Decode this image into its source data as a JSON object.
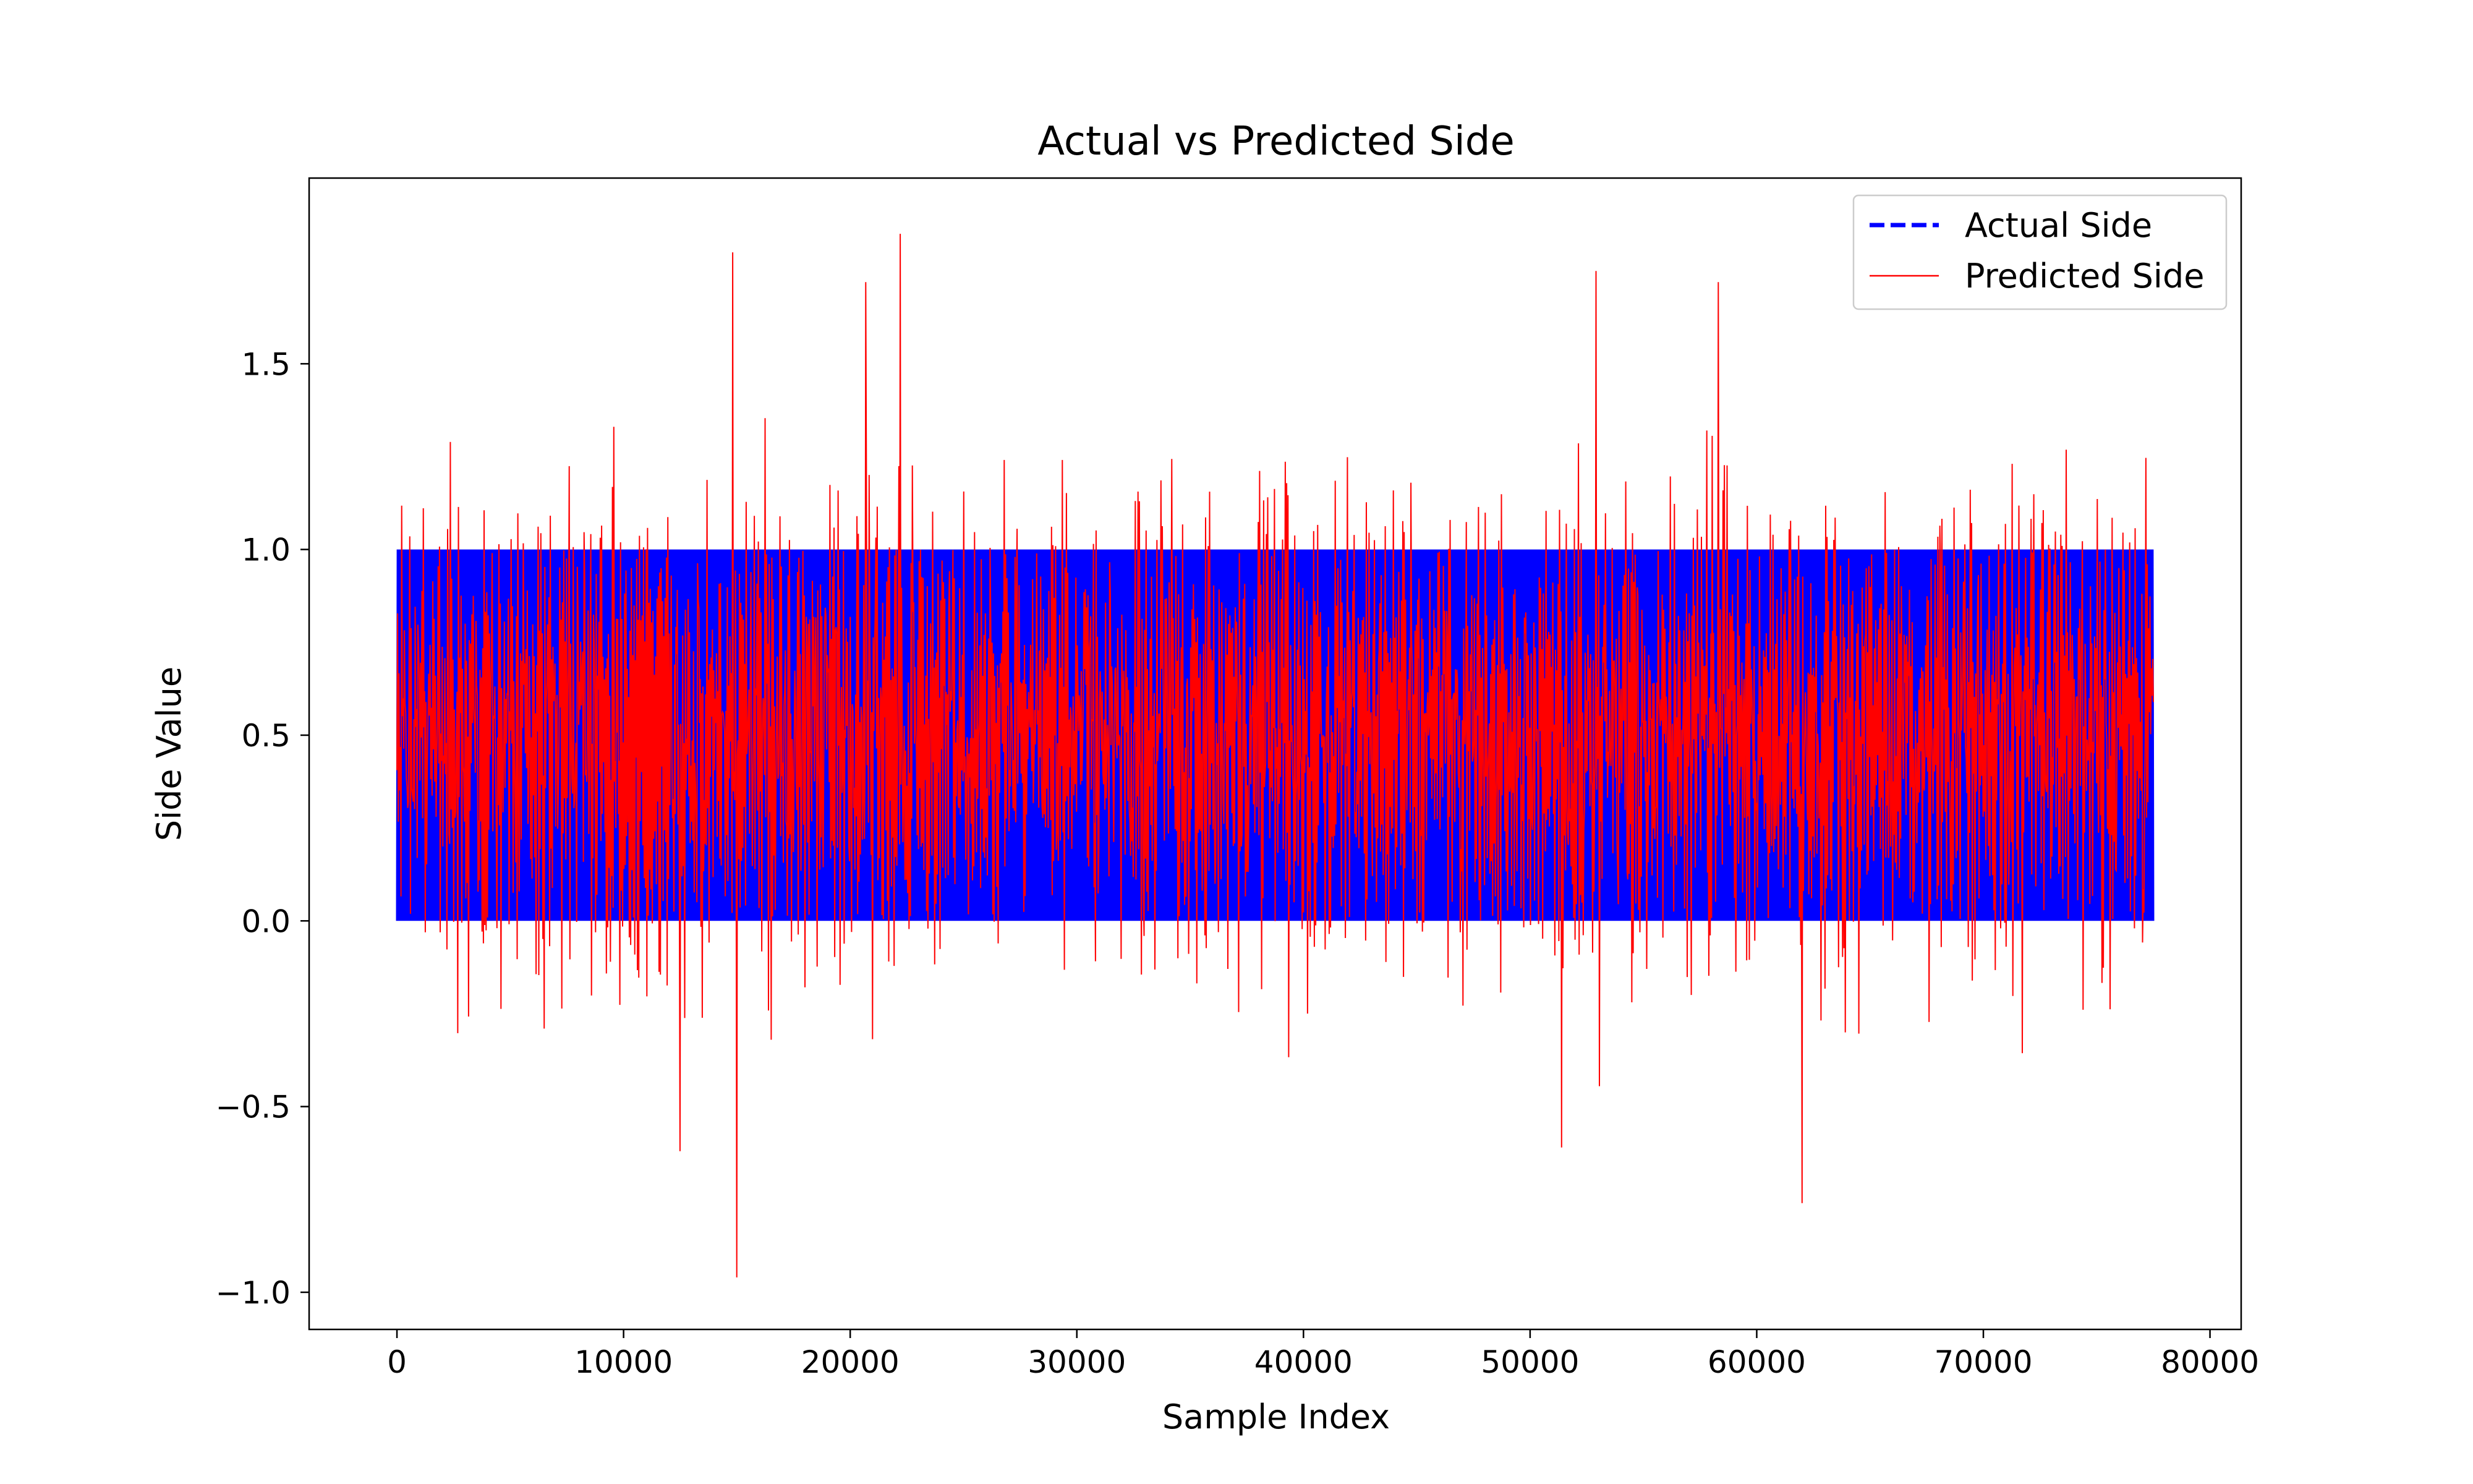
{
  "chart_data": {
    "type": "line",
    "title": "Actual vs Predicted Side",
    "xlabel": "Sample Index",
    "ylabel": "Side Value",
    "xlim": [
      -3875,
      81375
    ],
    "ylim": [
      -1.1,
      2.0
    ],
    "x_ticks": [
      0,
      10000,
      20000,
      30000,
      40000,
      50000,
      60000,
      70000,
      80000
    ],
    "x_tick_labels": [
      "0",
      "10000",
      "20000",
      "30000",
      "40000",
      "50000",
      "60000",
      "70000",
      "80000"
    ],
    "y_ticks": [
      -1.0,
      -0.5,
      0.0,
      0.5,
      1.0,
      1.5
    ],
    "y_tick_labels": [
      "−1.0",
      "−0.5",
      "0.0",
      "0.5",
      "1.0",
      "1.5"
    ],
    "grid": false,
    "legend_position": "top-right",
    "x_range": [
      0,
      77500
    ],
    "series": [
      {
        "name": "Actual Side",
        "style": "dashed",
        "color": "#0000ff",
        "values": [
          0,
          1
        ],
        "dense_regions": [
          [
            10000,
            12000
          ],
          [
            40300,
            40700
          ]
        ]
      },
      {
        "name": "Predicted Side",
        "style": "solid",
        "color": "#ff0000",
        "values": [
          -0.96,
          1.85
        ],
        "extremes": [
          {
            "x": 15000,
            "y": -0.96
          },
          {
            "x": 22200,
            "y": 1.85
          },
          {
            "x": 14800,
            "y": 1.8
          },
          {
            "x": 52900,
            "y": 1.75
          },
          {
            "x": 58300,
            "y": 1.72
          },
          {
            "x": 20700,
            "y": 1.72
          },
          {
            "x": 62000,
            "y": -0.76
          },
          {
            "x": 12500,
            "y": -0.62
          },
          {
            "x": 51400,
            "y": -0.61
          }
        ]
      }
    ]
  }
}
